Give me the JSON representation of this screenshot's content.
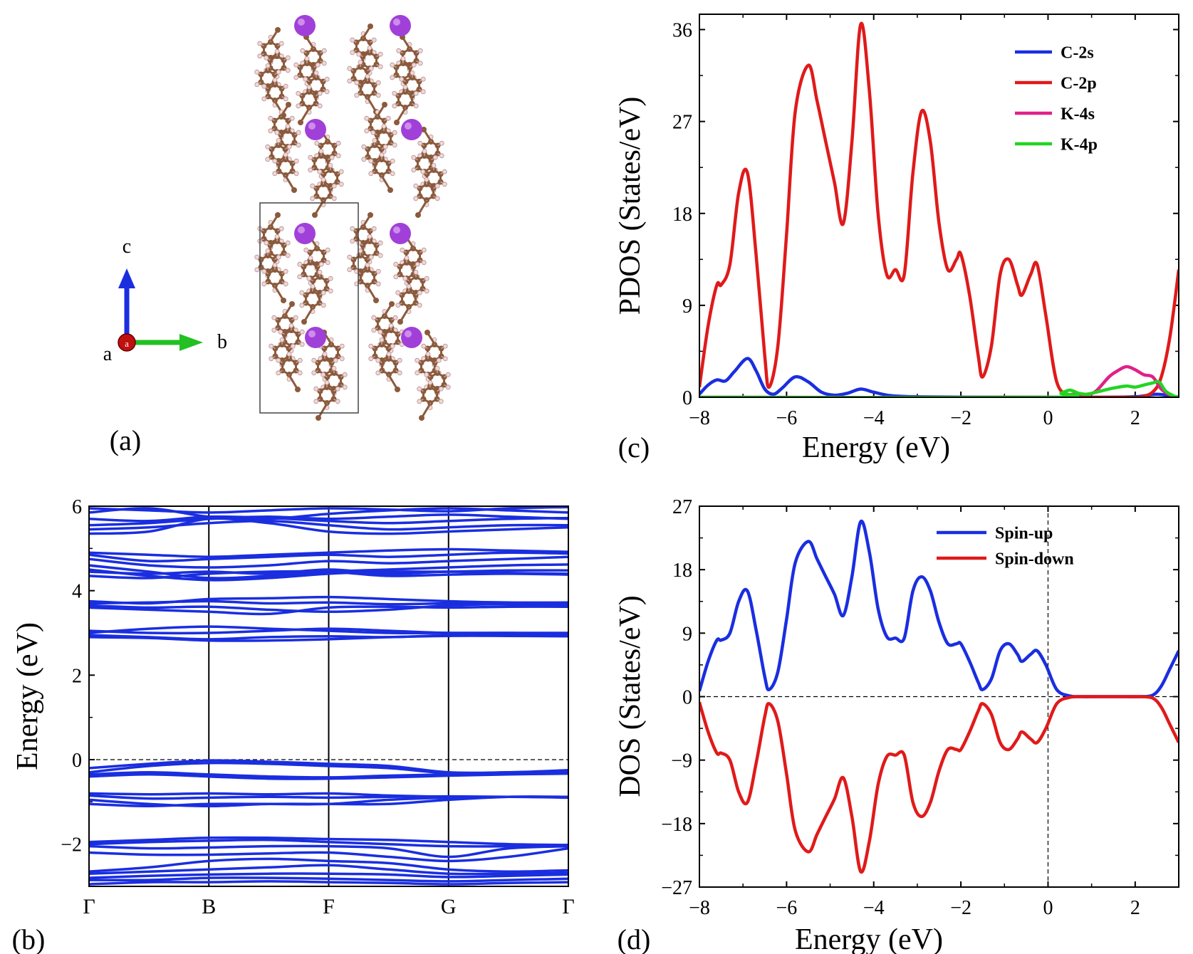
{
  "figure": {
    "panel_labels": {
      "a": "(a)",
      "b": "(b)",
      "c": "(c)",
      "d": "(d)"
    }
  },
  "crystal": {
    "axis_labels": {
      "a": "a",
      "b": "b",
      "c": "c",
      "origin": "a"
    },
    "colors": {
      "potassium": "#a040d8",
      "carbon": "#8b5a3c",
      "hydrogen": "#f0d8d8",
      "axis_b": "#22c022",
      "axis_c": "#1a2ee0",
      "axis_a": "#c01010"
    }
  },
  "chart_data": [
    {
      "id": "pdos",
      "type": "line",
      "xlabel": "Energy (eV)",
      "ylabel": "PDOS (States/eV)",
      "xlim": [
        -8,
        3
      ],
      "ylim": [
        0,
        37.5
      ],
      "xticks": [
        -8,
        -6,
        -4,
        -2,
        0,
        2
      ],
      "yticks": [
        0,
        9,
        18,
        27,
        36
      ],
      "legend_position": "top-right",
      "series": [
        {
          "name": "C-2s",
          "color": "#1a2ee0",
          "x": [
            -8,
            -7.8,
            -7.6,
            -7.4,
            -7.2,
            -6.9,
            -6.7,
            -6.5,
            -6.3,
            -6.1,
            -5.8,
            -5.5,
            -5.2,
            -4.9,
            -4.6,
            -4.3,
            -4.0,
            -3.6,
            -3.0,
            -2.0,
            0,
            1,
            2,
            2.5,
            3
          ],
          "values": [
            0.3,
            1.2,
            1.7,
            1.6,
            2.5,
            3.8,
            2.6,
            0.8,
            0.3,
            0.9,
            2.0,
            1.5,
            0.5,
            0.2,
            0.4,
            0.8,
            0.5,
            0.15,
            0.05,
            0.02,
            0.0,
            0.0,
            0.05,
            0.3,
            0.0
          ]
        },
        {
          "name": "C-2p",
          "color": "#e01a1a",
          "x": [
            -8,
            -7.8,
            -7.6,
            -7.5,
            -7.3,
            -7.1,
            -6.9,
            -6.7,
            -6.5,
            -6.4,
            -6.2,
            -6.0,
            -5.8,
            -5.5,
            -5.3,
            -5.1,
            -4.9,
            -4.7,
            -4.5,
            -4.3,
            -4.1,
            -3.9,
            -3.7,
            -3.5,
            -3.3,
            -3.1,
            -2.9,
            -2.7,
            -2.5,
            -2.3,
            -2.1,
            -2.0,
            -1.8,
            -1.6,
            -1.5,
            -1.3,
            -1.1,
            -0.9,
            -0.7,
            -0.6,
            -0.4,
            -0.25,
            -0.05,
            0.2,
            0.5,
            0.8,
            1.1,
            1.4,
            1.8,
            2.1,
            2.4,
            2.6,
            2.8,
            3.0
          ],
          "values": [
            1.0,
            7.0,
            11.0,
            11.0,
            13.0,
            20.0,
            22.0,
            14.0,
            4.0,
            1.0,
            5.0,
            16.0,
            28.0,
            32.5,
            29.0,
            25.0,
            21.0,
            17.0,
            25.0,
            36.5,
            30.0,
            18.0,
            12.0,
            12.5,
            12.0,
            22.0,
            28.0,
            25.0,
            17.0,
            12.5,
            13.5,
            14.0,
            10.0,
            4.0,
            2.0,
            5.0,
            12.0,
            13.5,
            11.0,
            10.0,
            12.0,
            13.0,
            8.0,
            1.5,
            0.2,
            0.0,
            0.0,
            0.0,
            0.0,
            0.0,
            0.5,
            2.0,
            6.0,
            12.5
          ]
        },
        {
          "name": "K-4s",
          "color": "#e0208a",
          "x": [
            -8,
            0,
            0.4,
            0.6,
            0.9,
            1.1,
            1.4,
            1.6,
            1.8,
            2.0,
            2.2,
            2.4,
            2.6,
            2.8,
            3.0
          ],
          "values": [
            0,
            0,
            0.2,
            0.3,
            0.3,
            0.6,
            2.0,
            2.6,
            3.0,
            2.7,
            2.2,
            2.0,
            0.8,
            0.2,
            0.0
          ]
        },
        {
          "name": "K-4p",
          "color": "#22d422",
          "x": [
            -8,
            0,
            0.3,
            0.5,
            0.7,
            0.9,
            1.2,
            1.5,
            1.8,
            2.0,
            2.2,
            2.4,
            2.55,
            2.7,
            2.9,
            3.0
          ],
          "values": [
            0,
            0,
            0.4,
            0.7,
            0.4,
            0.3,
            0.6,
            0.9,
            1.1,
            1.0,
            1.2,
            1.4,
            1.5,
            0.6,
            0.1,
            0.0
          ]
        }
      ]
    },
    {
      "id": "bands",
      "type": "line",
      "ylabel": "Energy (eV)",
      "ylim": [
        -3,
        6
      ],
      "yticks": [
        -2,
        0,
        2,
        4,
        6
      ],
      "ytick_labels": [
        "−2",
        "0",
        "2",
        "4",
        "6"
      ],
      "kpoints": [
        "Γ",
        "B",
        "F",
        "G",
        "Γ"
      ],
      "bands_color": "#1a2ee0",
      "bands": [
        [
          5.95,
          5.9,
          5.85,
          5.9,
          5.95,
          5.92,
          5.88,
          5.95,
          5.98
        ],
        [
          5.85,
          5.95,
          5.75,
          5.7,
          5.82,
          5.9,
          5.95,
          5.9,
          5.85
        ],
        [
          5.7,
          5.65,
          5.75,
          5.72,
          5.65,
          5.6,
          5.65,
          5.7,
          5.72
        ],
        [
          5.55,
          5.6,
          5.7,
          5.75,
          5.7,
          5.75,
          5.8,
          5.75,
          5.7
        ],
        [
          5.45,
          5.5,
          5.6,
          5.65,
          5.55,
          5.45,
          5.5,
          5.55,
          5.55
        ],
        [
          5.35,
          5.4,
          5.7,
          5.6,
          5.4,
          5.35,
          5.4,
          5.45,
          5.5
        ],
        [
          4.9,
          4.85,
          4.8,
          4.85,
          4.9,
          4.95,
          4.98,
          4.95,
          4.92
        ],
        [
          4.85,
          4.7,
          4.75,
          4.8,
          4.85,
          4.8,
          4.85,
          4.9,
          4.88
        ],
        [
          4.75,
          4.6,
          4.55,
          4.6,
          4.7,
          4.65,
          4.7,
          4.75,
          4.8
        ],
        [
          4.6,
          4.45,
          4.3,
          4.35,
          4.45,
          4.5,
          4.55,
          4.6,
          4.62
        ],
        [
          4.5,
          4.35,
          4.25,
          4.3,
          4.4,
          4.45,
          4.45,
          4.48,
          4.48
        ],
        [
          4.45,
          4.4,
          4.45,
          4.4,
          4.5,
          4.4,
          4.45,
          4.42,
          4.4
        ],
        [
          4.35,
          4.3,
          4.4,
          4.45,
          4.45,
          4.35,
          4.38,
          4.4,
          4.38
        ],
        [
          3.75,
          3.7,
          3.8,
          3.82,
          3.85,
          3.8,
          3.75,
          3.72,
          3.72
        ],
        [
          3.7,
          3.72,
          3.75,
          3.7,
          3.72,
          3.68,
          3.7,
          3.7,
          3.7
        ],
        [
          3.65,
          3.6,
          3.62,
          3.55,
          3.5,
          3.55,
          3.65,
          3.68,
          3.65
        ],
        [
          3.6,
          3.55,
          3.5,
          3.45,
          3.6,
          3.62,
          3.6,
          3.62,
          3.62
        ],
        [
          3.05,
          3.0,
          3.0,
          3.05,
          3.1,
          3.05,
          3.0,
          3.0,
          2.98
        ],
        [
          3.0,
          3.1,
          3.15,
          3.1,
          3.05,
          3.0,
          3.0,
          3.0,
          3.0
        ],
        [
          2.95,
          2.9,
          2.85,
          2.9,
          2.92,
          2.9,
          2.95,
          2.97,
          2.95
        ],
        [
          2.9,
          2.88,
          2.82,
          2.82,
          2.85,
          2.9,
          2.93,
          2.93,
          2.92
        ],
        [
          -0.2,
          -0.1,
          -0.02,
          -0.05,
          -0.1,
          -0.15,
          -0.3,
          -0.3,
          -0.25
        ],
        [
          -0.3,
          -0.15,
          -0.08,
          -0.1,
          -0.15,
          -0.2,
          -0.32,
          -0.3,
          -0.28
        ],
        [
          -0.35,
          -0.3,
          -0.35,
          -0.4,
          -0.42,
          -0.38,
          -0.35,
          -0.32,
          -0.3
        ],
        [
          -0.4,
          -0.35,
          -0.4,
          -0.45,
          -0.45,
          -0.42,
          -0.38,
          -0.35,
          -0.33
        ],
        [
          -0.8,
          -0.82,
          -0.8,
          -0.82,
          -0.8,
          -0.85,
          -0.88,
          -0.88,
          -0.88
        ],
        [
          -0.85,
          -0.92,
          -0.9,
          -0.88,
          -0.9,
          -0.88,
          -0.87,
          -0.88,
          -0.88
        ],
        [
          -0.95,
          -1.05,
          -1.1,
          -1.05,
          -1.05,
          -1.05,
          -0.95,
          -0.88,
          -0.88
        ],
        [
          -1.05,
          -1.1,
          -1.05,
          -1.05,
          -1.05,
          -0.95,
          -0.9,
          -0.88,
          -0.9
        ],
        [
          -1.95,
          -1.9,
          -1.85,
          -1.85,
          -1.88,
          -1.9,
          -1.95,
          -2.0,
          -2.02
        ],
        [
          -2.0,
          -1.95,
          -1.92,
          -1.9,
          -1.95,
          -2.0,
          -2.05,
          -2.05,
          -2.02
        ],
        [
          -2.05,
          -2.1,
          -2.08,
          -2.05,
          -2.05,
          -2.1,
          -2.3,
          -2.1,
          -2.05
        ],
        [
          -2.2,
          -2.25,
          -2.25,
          -2.22,
          -2.2,
          -2.3,
          -2.4,
          -2.3,
          -2.1
        ],
        [
          -2.65,
          -2.55,
          -2.4,
          -2.35,
          -2.4,
          -2.45,
          -2.6,
          -2.65,
          -2.62
        ],
        [
          -2.7,
          -2.65,
          -2.6,
          -2.55,
          -2.5,
          -2.6,
          -2.7,
          -2.7,
          -2.68
        ],
        [
          -2.8,
          -2.75,
          -2.72,
          -2.7,
          -2.7,
          -2.72,
          -2.78,
          -2.75,
          -2.72
        ],
        [
          -2.85,
          -2.85,
          -2.8,
          -2.8,
          -2.82,
          -2.85,
          -2.88,
          -2.85,
          -2.82
        ],
        [
          -2.95,
          -2.9,
          -2.9,
          -2.88,
          -2.9,
          -2.92,
          -2.95,
          -2.92,
          -2.9
        ]
      ]
    },
    {
      "id": "dos",
      "type": "line",
      "xlabel": "Energy (eV)",
      "ylabel": "DOS (States/eV)",
      "xlim": [
        -8,
        3
      ],
      "ylim": [
        -27,
        27
      ],
      "xticks": [
        -8,
        -6,
        -4,
        -2,
        0,
        2
      ],
      "yticks": [
        -27,
        -18,
        -9,
        0,
        9,
        18,
        27
      ],
      "legend_position": "top-right",
      "series": [
        {
          "name": "Spin-up",
          "color": "#1a2ee0",
          "x": [
            -8,
            -7.8,
            -7.6,
            -7.5,
            -7.3,
            -7.1,
            -6.9,
            -6.7,
            -6.5,
            -6.4,
            -6.2,
            -6.0,
            -5.8,
            -5.5,
            -5.3,
            -5.1,
            -4.9,
            -4.7,
            -4.5,
            -4.3,
            -4.1,
            -3.9,
            -3.7,
            -3.5,
            -3.3,
            -3.1,
            -2.9,
            -2.7,
            -2.5,
            -2.3,
            -2.1,
            -2.0,
            -1.8,
            -1.6,
            -1.5,
            -1.3,
            -1.1,
            -0.9,
            -0.7,
            -0.6,
            -0.4,
            -0.25,
            -0.05,
            0.2,
            0.5,
            0.8,
            1.1,
            1.4,
            1.8,
            2.1,
            2.4,
            2.6,
            2.8,
            3.0
          ],
          "values": [
            0.8,
            5.0,
            8.0,
            8.0,
            9.0,
            13.5,
            15.0,
            9.5,
            2.8,
            1.0,
            3.5,
            11.0,
            19.0,
            22.0,
            19.5,
            17.0,
            14.5,
            11.5,
            17.0,
            24.8,
            20.5,
            12.5,
            8.5,
            8.3,
            8.3,
            15.0,
            17.0,
            15.0,
            10.5,
            7.5,
            7.5,
            7.5,
            5.0,
            2.0,
            1.0,
            2.5,
            6.5,
            7.5,
            6.0,
            5.0,
            6.0,
            6.5,
            4.5,
            1.0,
            0.1,
            0.0,
            0.0,
            0.0,
            0.0,
            0.0,
            0.2,
            1.5,
            4.0,
            6.5
          ]
        },
        {
          "name": "Spin-down",
          "color": "#e01a1a",
          "x": [
            -8,
            -7.8,
            -7.6,
            -7.5,
            -7.3,
            -7.1,
            -6.9,
            -6.7,
            -6.5,
            -6.4,
            -6.2,
            -6.0,
            -5.8,
            -5.5,
            -5.3,
            -5.1,
            -4.9,
            -4.7,
            -4.5,
            -4.3,
            -4.1,
            -3.9,
            -3.7,
            -3.5,
            -3.3,
            -3.1,
            -2.9,
            -2.7,
            -2.5,
            -2.3,
            -2.1,
            -2.0,
            -1.8,
            -1.6,
            -1.5,
            -1.3,
            -1.1,
            -0.9,
            -0.7,
            -0.6,
            -0.4,
            -0.25,
            -0.05,
            0.2,
            0.5,
            0.8,
            1.1,
            1.4,
            1.8,
            2.1,
            2.4,
            2.6,
            2.8,
            3.0
          ],
          "values": [
            -0.8,
            -5.0,
            -8.0,
            -8.0,
            -9.0,
            -13.5,
            -15.0,
            -9.5,
            -2.8,
            -1.0,
            -3.5,
            -11.0,
            -19.0,
            -22.0,
            -19.5,
            -17.0,
            -14.5,
            -11.5,
            -17.0,
            -24.8,
            -20.5,
            -12.5,
            -8.5,
            -8.3,
            -8.3,
            -15.0,
            -17.0,
            -15.0,
            -10.5,
            -7.5,
            -7.5,
            -7.5,
            -5.0,
            -2.0,
            -1.0,
            -2.5,
            -6.5,
            -7.5,
            -6.0,
            -5.0,
            -6.0,
            -6.5,
            -4.5,
            -1.0,
            -0.1,
            0.0,
            0.0,
            0.0,
            0.0,
            0.0,
            -0.2,
            -1.5,
            -4.0,
            -6.5
          ]
        }
      ]
    }
  ]
}
